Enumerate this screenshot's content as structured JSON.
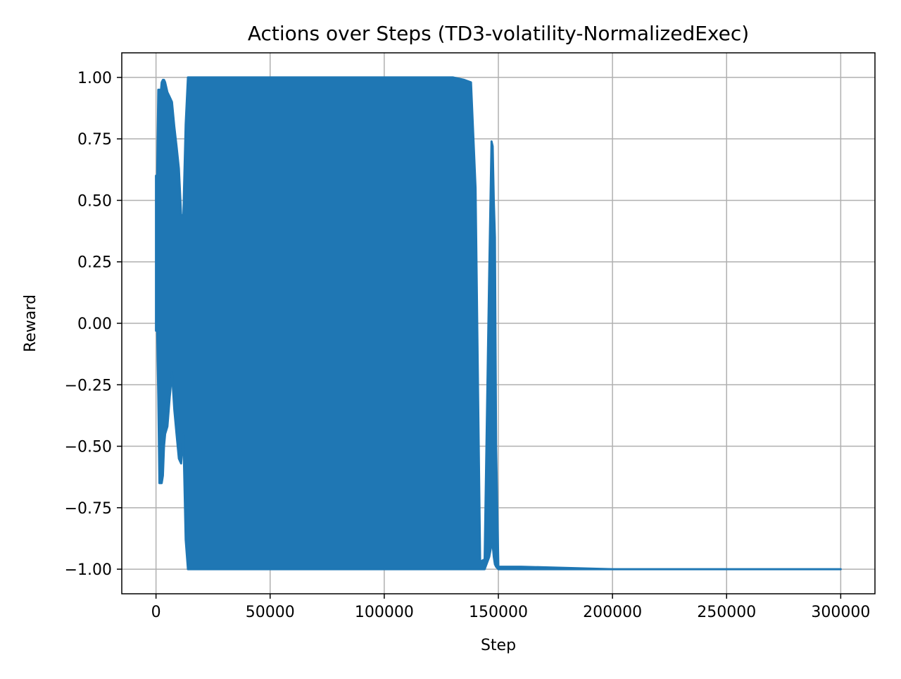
{
  "chart_data": {
    "type": "line",
    "title": "Actions over Steps (TD3-volatility-NormalizedExec)",
    "xlabel": "Step",
    "ylabel": "Reward",
    "xlim": [
      -15000,
      315000
    ],
    "ylim": [
      -1.1,
      1.1
    ],
    "grid": true,
    "legend": "none",
    "x_ticks": [
      0,
      50000,
      100000,
      150000,
      200000,
      250000,
      300000
    ],
    "x_tick_labels": [
      "0",
      "50000",
      "100000",
      "150000",
      "200000",
      "250000",
      "300000"
    ],
    "y_ticks": [
      1.0,
      0.75,
      0.5,
      0.25,
      0.0,
      -0.25,
      -0.5,
      -0.75,
      -1.0
    ],
    "y_tick_labels": [
      "1.00",
      "0.75",
      "0.50",
      "0.25",
      "0.00",
      "−0.25",
      "−0.50",
      "−0.75",
      "−1.00"
    ],
    "series": [
      {
        "color": "#1f77b4",
        "envelope": {
          "x": [
            0,
            500,
            1000,
            1500,
            2000,
            2500,
            3000,
            3500,
            4000,
            5000,
            6000,
            7000,
            8000,
            9000,
            10000,
            11000,
            12000,
            13000,
            14000,
            15000,
            20000,
            30000,
            50000,
            100000,
            130000,
            135000,
            138000,
            140000,
            142000,
            144000,
            146000,
            147000,
            147500,
            148000,
            148500,
            149000,
            150000,
            152000,
            155000,
            160000,
            200000,
            250000,
            300000
          ],
          "upper": [
            0.6,
            0.6,
            0.95,
            0.95,
            0.93,
            0.98,
            0.99,
            0.99,
            0.98,
            0.94,
            0.92,
            0.9,
            0.8,
            0.72,
            0.63,
            0.44,
            0.44,
            0.81,
            1.0,
            1.0,
            1.0,
            1.0,
            1.0,
            1.0,
            1.0,
            0.99,
            0.98,
            0.55,
            -0.97,
            -0.96,
            0.2,
            0.74,
            0.72,
            0.5,
            0.35,
            -0.5,
            -0.99,
            -0.99,
            -0.99,
            -0.99,
            -1.0,
            -1.0,
            -1.0
          ],
          "lower": [
            -0.03,
            -0.03,
            -0.3,
            -0.65,
            -0.65,
            -0.65,
            -0.62,
            -0.5,
            -0.45,
            -0.42,
            -0.3,
            -0.2,
            -0.35,
            -0.45,
            -0.55,
            -0.57,
            -0.45,
            -0.88,
            -1.0,
            -1.0,
            -1.0,
            -1.0,
            -1.0,
            -1.0,
            -1.0,
            -1.0,
            -1.0,
            -1.0,
            -1.0,
            -1.0,
            -0.95,
            -0.9,
            -0.9,
            -0.95,
            -0.98,
            -0.99,
            -1.0,
            -1.0,
            -1.0,
            -1.0,
            -1.0,
            -1.0,
            -1.0
          ]
        }
      }
    ]
  }
}
